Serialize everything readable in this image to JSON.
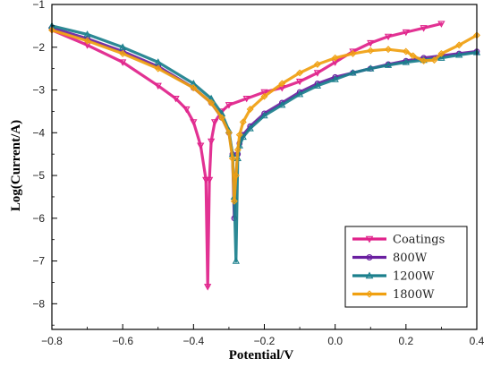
{
  "chart_data": {
    "type": "line",
    "title": "",
    "xlabel": "Potential/V",
    "ylabel": "Log(Current/A)",
    "xlim": [
      -0.8,
      0.4
    ],
    "ylim": [
      -8.6,
      -1
    ],
    "xticks": [
      -0.8,
      -0.6,
      -0.4,
      -0.2,
      0.0,
      0.2,
      0.4
    ],
    "xtick_labels": [
      "−0.8",
      "−0.6",
      "−0.4",
      "−0.2",
      "0.0",
      "0.2",
      "0.4"
    ],
    "yticks": [
      -1,
      -2,
      -3,
      -4,
      -5,
      -6,
      -7,
      -8
    ],
    "ytick_labels": [
      "−1",
      "−2",
      "−3",
      "−4",
      "−5",
      "−6",
      "−7",
      "−8"
    ],
    "legend_position": "bottom-right",
    "series": [
      {
        "name": "Coatings",
        "color": "#e0218a",
        "marker": "triangle-down",
        "x": [
          -0.8,
          -0.7,
          -0.6,
          -0.5,
          -0.45,
          -0.42,
          -0.4,
          -0.38,
          -0.365,
          -0.36,
          -0.355,
          -0.35,
          -0.34,
          -0.32,
          -0.3,
          -0.25,
          -0.2,
          -0.15,
          -0.1,
          -0.05,
          0.0,
          0.05,
          0.1,
          0.15,
          0.2,
          0.25,
          0.3
        ],
        "y": [
          -1.6,
          -1.95,
          -2.35,
          -2.9,
          -3.2,
          -3.45,
          -3.75,
          -4.3,
          -5.1,
          -7.6,
          -5.1,
          -4.2,
          -3.75,
          -3.5,
          -3.35,
          -3.2,
          -3.05,
          -2.95,
          -2.8,
          -2.6,
          -2.35,
          -2.1,
          -1.9,
          -1.75,
          -1.65,
          -1.55,
          -1.45
        ]
      },
      {
        "name": "800W",
        "color": "#6a1fa0",
        "marker": "circle",
        "x": [
          -0.8,
          -0.7,
          -0.6,
          -0.5,
          -0.4,
          -0.35,
          -0.32,
          -0.3,
          -0.29,
          -0.285,
          -0.28,
          -0.275,
          -0.27,
          -0.26,
          -0.24,
          -0.2,
          -0.15,
          -0.1,
          -0.05,
          0.0,
          0.05,
          0.1,
          0.15,
          0.2,
          0.25,
          0.3,
          0.35,
          0.4
        ],
        "y": [
          -1.55,
          -1.8,
          -2.1,
          -2.45,
          -2.95,
          -3.3,
          -3.65,
          -4.0,
          -4.5,
          -6.0,
          -5.0,
          -4.5,
          -4.25,
          -4.05,
          -3.85,
          -3.55,
          -3.3,
          -3.05,
          -2.85,
          -2.7,
          -2.6,
          -2.5,
          -2.4,
          -2.32,
          -2.25,
          -2.2,
          -2.15,
          -2.1
        ]
      },
      {
        "name": "1200W",
        "color": "#1a7f8c",
        "marker": "triangle-up",
        "x": [
          -0.8,
          -0.7,
          -0.6,
          -0.5,
          -0.4,
          -0.35,
          -0.32,
          -0.3,
          -0.29,
          -0.285,
          -0.28,
          -0.275,
          -0.27,
          -0.26,
          -0.24,
          -0.2,
          -0.15,
          -0.1,
          -0.05,
          0.0,
          0.05,
          0.1,
          0.15,
          0.2,
          0.25,
          0.3,
          0.35,
          0.4
        ],
        "y": [
          -1.5,
          -1.7,
          -2.0,
          -2.35,
          -2.85,
          -3.2,
          -3.55,
          -3.95,
          -4.5,
          -5.5,
          -7.0,
          -4.6,
          -4.3,
          -4.1,
          -3.9,
          -3.6,
          -3.35,
          -3.1,
          -2.9,
          -2.75,
          -2.6,
          -2.5,
          -2.42,
          -2.35,
          -2.3,
          -2.25,
          -2.18,
          -2.12
        ]
      },
      {
        "name": "1800W",
        "color": "#f0a010",
        "marker": "diamond",
        "x": [
          -0.8,
          -0.7,
          -0.6,
          -0.5,
          -0.4,
          -0.35,
          -0.32,
          -0.3,
          -0.29,
          -0.285,
          -0.28,
          -0.275,
          -0.27,
          -0.26,
          -0.24,
          -0.2,
          -0.15,
          -0.1,
          -0.05,
          0.0,
          0.05,
          0.1,
          0.15,
          0.2,
          0.22,
          0.25,
          0.28,
          0.3,
          0.35,
          0.4
        ],
        "y": [
          -1.6,
          -1.85,
          -2.15,
          -2.5,
          -2.95,
          -3.3,
          -3.65,
          -4.0,
          -4.6,
          -5.6,
          -5.0,
          -4.4,
          -4.05,
          -3.75,
          -3.45,
          -3.15,
          -2.85,
          -2.6,
          -2.4,
          -2.25,
          -2.15,
          -2.08,
          -2.05,
          -2.1,
          -2.2,
          -2.32,
          -2.3,
          -2.15,
          -1.95,
          -1.72
        ]
      }
    ]
  }
}
